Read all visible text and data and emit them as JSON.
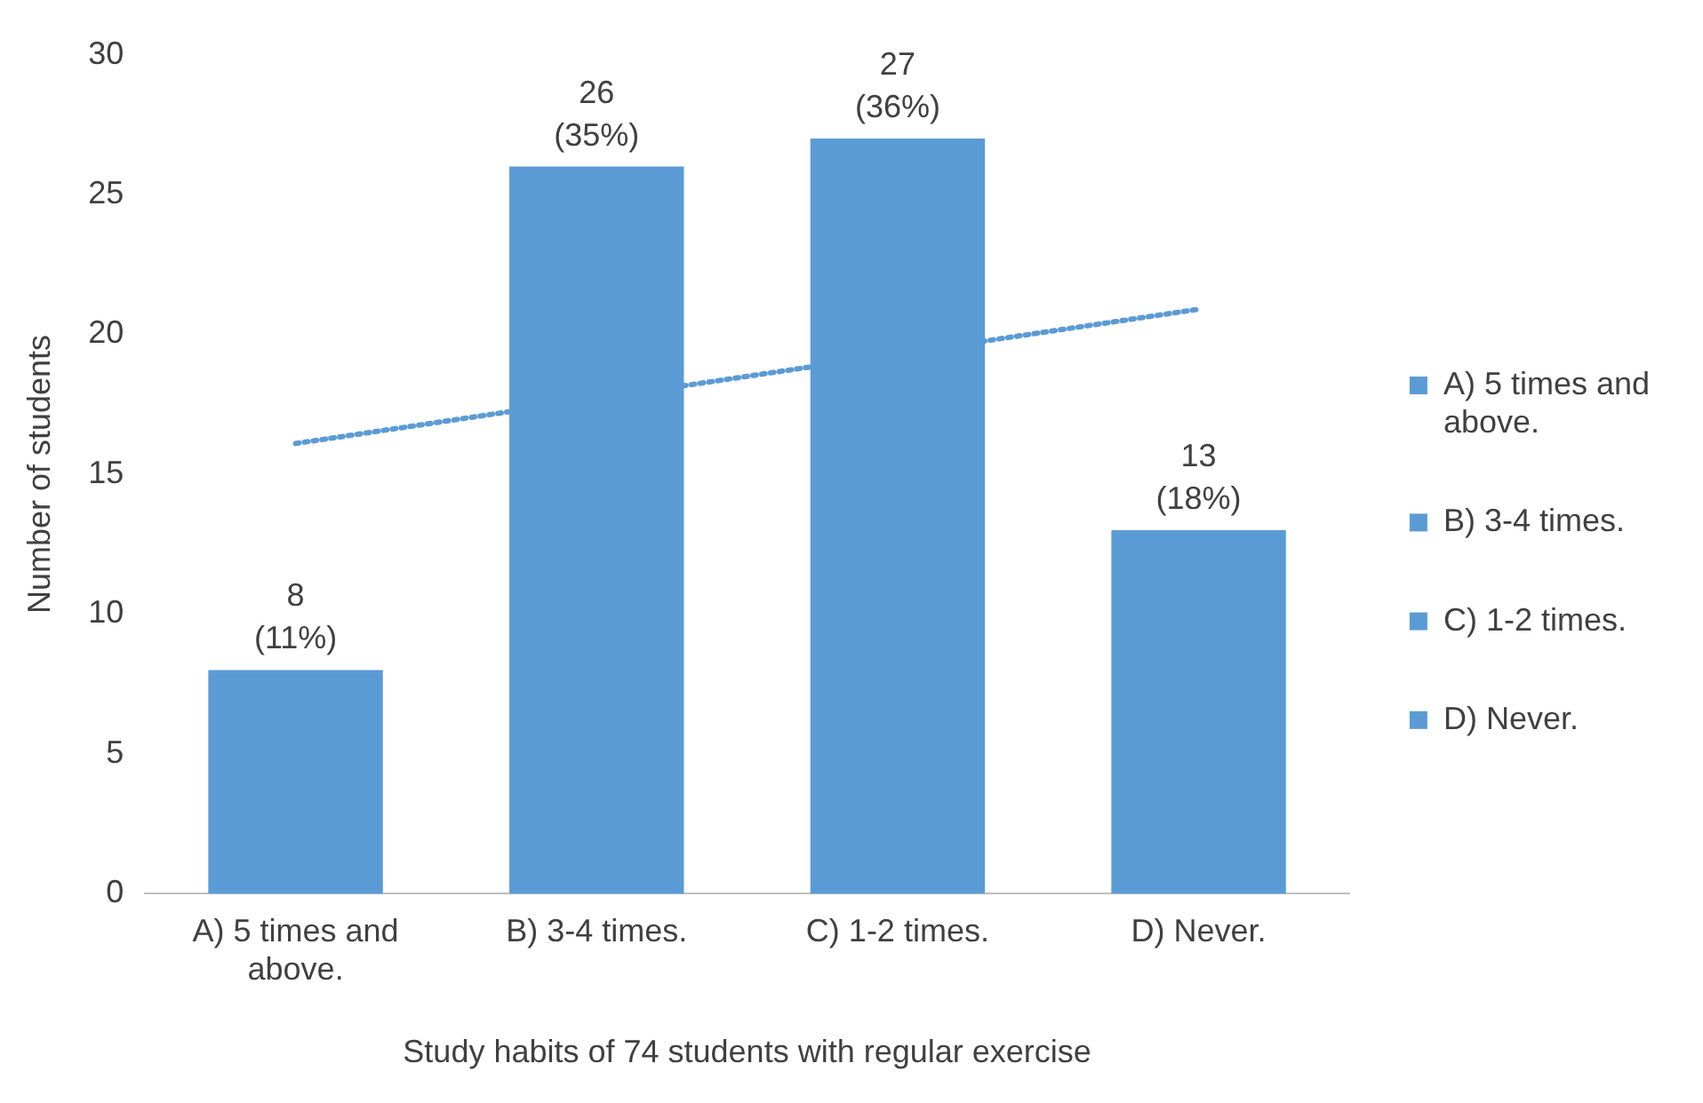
{
  "chart_data": {
    "type": "bar",
    "xlabel": "Study habits of 74 students with regular exercise",
    "ylabel": "Number of students",
    "categories": [
      "A) 5 times and above.",
      "B) 3-4 times.",
      "C) 1-2 times.",
      "D) Never."
    ],
    "stacked": true,
    "series": [
      {
        "name": "A) 5 times and above.",
        "color": "#5b9bd5",
        "values": [
          8,
          null,
          null,
          null
        ],
        "value_labels": [
          "8\n(11%)",
          null,
          null,
          null
        ]
      },
      {
        "name": "B) 3-4 times.",
        "color": "#5b9bd5",
        "values": [
          null,
          26,
          null,
          null
        ],
        "value_labels": [
          null,
          "26\n(35%)",
          null,
          null
        ]
      },
      {
        "name": "C) 1-2 times.",
        "color": "#5b9bd5",
        "values": [
          null,
          null,
          27,
          null
        ],
        "value_labels": [
          null,
          null,
          "27\n(36%)",
          null
        ]
      },
      {
        "name": "D) Never.",
        "color": "#5b9bd5",
        "values": [
          null,
          null,
          null,
          13
        ],
        "value_labels": [
          null,
          null,
          null,
          "13\n(18%)"
        ]
      },
      {
        "type": "line",
        "color": "#5b9bd5",
        "x": [
          "A) 5 times and above.",
          "D) Never."
        ],
        "values": [
          16.1,
          20.9
        ],
        "line_style": "dotted",
        "marker": "none"
      }
    ],
    "ylim": [
      0,
      30
    ],
    "yticks": [
      0,
      5,
      10,
      15,
      20,
      25,
      30
    ],
    "grid": false,
    "legend": "right"
  }
}
